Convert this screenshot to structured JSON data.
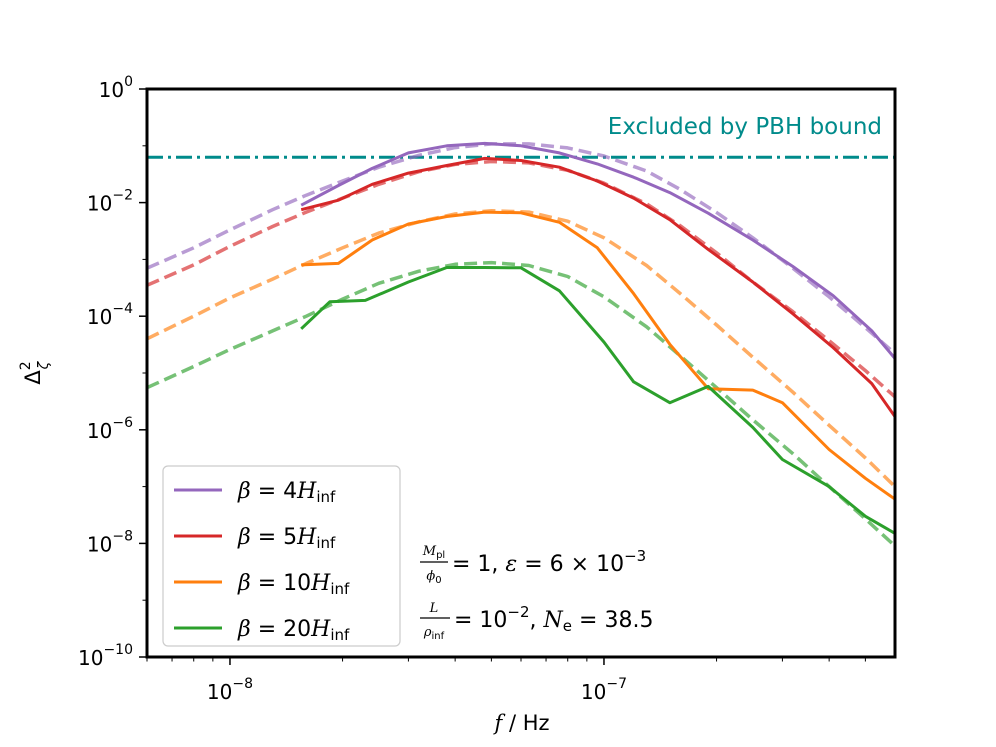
{
  "chart_data": {
    "type": "line",
    "title": "",
    "xlabel": "f / Hz",
    "ylabel": "Δζ²",
    "xscale": "log",
    "yscale": "log",
    "xlim": [
      6e-09,
      6e-07
    ],
    "ylim": [
      1e-10,
      1
    ],
    "x_ticks": [
      {
        "value": 1e-08,
        "base": "10",
        "exp": "−8"
      },
      {
        "value": 1e-07,
        "base": "10",
        "exp": "−7"
      }
    ],
    "y_ticks": [
      {
        "value": 1,
        "base": "10",
        "exp": "0"
      },
      {
        "value": 0.01,
        "base": "10",
        "exp": "−2"
      },
      {
        "value": 0.0001,
        "base": "10",
        "exp": "−4"
      },
      {
        "value": 1e-06,
        "base": "10",
        "exp": "−6"
      },
      {
        "value": 1e-08,
        "base": "10",
        "exp": "−8"
      },
      {
        "value": 1e-10,
        "base": "10",
        "exp": "−10"
      }
    ],
    "pbh_bound": {
      "value": 0.063,
      "label": "Excluded by PBH bound",
      "color": "#008b8b"
    },
    "legend": {
      "placement": "lower-left"
    },
    "series": [
      {
        "name": "β = 4H_inf",
        "symbol": "β",
        "rel": " = 4",
        "var": "H",
        "sub": "inf",
        "color": "#9467bd",
        "solid": {
          "x": [
            1.55e-08,
            1.95e-08,
            2.4e-08,
            3e-08,
            3.8e-08,
            4.8e-08,
            6e-08,
            7.6e-08,
            9.6e-08,
            1.2e-07,
            1.5e-07,
            1.9e-07,
            2.5e-07,
            3.2e-07,
            4.1e-07,
            5.2e-07,
            6e-07
          ],
          "y": [
            0.009,
            0.02,
            0.04,
            0.075,
            0.1,
            0.11,
            0.1,
            0.075,
            0.048,
            0.028,
            0.015,
            0.0065,
            0.0022,
            0.00075,
            0.00023,
            5.5e-05,
            1.8e-05
          ]
        },
        "dashed": {
          "x": [
            6e-09,
            8e-09,
            1e-08,
            1.3e-08,
            1.6e-08,
            2e-08,
            2.5e-08,
            3.2e-08,
            4e-08,
            5e-08,
            6.3e-08,
            8e-08,
            1e-07,
            1.3e-07,
            1.6e-07,
            2e-07,
            2.5e-07,
            3.2e-07,
            4e-07,
            5e-07,
            6e-07
          ],
          "y": [
            0.0007,
            0.0016,
            0.0033,
            0.0075,
            0.0135,
            0.024,
            0.042,
            0.068,
            0.093,
            0.108,
            0.108,
            0.092,
            0.066,
            0.036,
            0.017,
            0.0067,
            0.0024,
            0.0007,
            0.00022,
            6.3e-05,
            2.2e-05
          ]
        }
      },
      {
        "name": "β = 5H_inf",
        "symbol": "β",
        "rel": " = 5",
        "var": "H",
        "sub": "inf",
        "color": "#d62728",
        "solid": {
          "x": [
            1.55e-08,
            1.95e-08,
            2.4e-08,
            3e-08,
            3.8e-08,
            4.8e-08,
            6e-08,
            7.6e-08,
            9.6e-08,
            1.2e-07,
            1.5e-07,
            1.9e-07,
            2.5e-07,
            3.2e-07,
            4.1e-07,
            5.2e-07,
            6e-07
          ],
          "y": [
            0.0075,
            0.011,
            0.021,
            0.033,
            0.045,
            0.06,
            0.055,
            0.042,
            0.024,
            0.012,
            0.005,
            0.0015,
            0.0004,
            0.00011,
            2.8e-05,
            6.5e-06,
            1.7e-06
          ]
        },
        "dashed": {
          "x": [
            6e-09,
            8e-09,
            1e-08,
            1.3e-08,
            1.6e-08,
            2e-08,
            2.5e-08,
            3.2e-08,
            4e-08,
            5e-08,
            6.3e-08,
            8e-08,
            1e-07,
            1.3e-07,
            1.6e-07,
            2e-07,
            2.5e-07,
            3.2e-07,
            4e-07,
            5e-07,
            6e-07
          ],
          "y": [
            0.00035,
            0.0008,
            0.0017,
            0.0038,
            0.0068,
            0.012,
            0.021,
            0.035,
            0.047,
            0.053,
            0.05,
            0.037,
            0.022,
            0.0095,
            0.0039,
            0.0013,
            0.0004,
            0.00012,
            3.7e-05,
            1.1e-05,
            3.8e-06
          ]
        }
      },
      {
        "name": "β = 10H_inf",
        "symbol": "β",
        "rel": " = 10",
        "var": "H",
        "sub": "inf",
        "color": "#ff7f0e",
        "solid": {
          "x": [
            1.55e-08,
            1.95e-08,
            2.4e-08,
            3e-08,
            3.8e-08,
            4.8e-08,
            6e-08,
            7.6e-08,
            9.6e-08,
            1.2e-07,
            1.5e-07,
            1.9e-07,
            2.5e-07,
            3e-07,
            4e-07,
            5e-07,
            6e-07
          ],
          "y": [
            0.0008,
            0.00085,
            0.0022,
            0.0042,
            0.0057,
            0.0068,
            0.0066,
            0.0045,
            0.0016,
            0.00025,
            3.2e-05,
            5.3e-06,
            5e-06,
            3e-06,
            4.5e-07,
            1.4e-07,
            6e-08
          ]
        },
        "dashed": {
          "x": [
            6e-09,
            8e-09,
            1e-08,
            1.3e-08,
            1.6e-08,
            2e-08,
            2.5e-08,
            3.2e-08,
            4e-08,
            5e-08,
            6.3e-08,
            8e-08,
            1e-07,
            1.3e-07,
            1.6e-07,
            2e-07,
            2.5e-07,
            3.2e-07,
            4e-07,
            5e-07,
            6e-07
          ],
          "y": [
            4e-05,
            0.0001,
            0.00021,
            0.00045,
            0.00085,
            0.0016,
            0.0029,
            0.0046,
            0.0063,
            0.0072,
            0.0068,
            0.0047,
            0.0024,
            0.00078,
            0.00025,
            7e-05,
            1.9e-05,
            4.6e-06,
            1.2e-06,
            3.2e-07,
            1e-07
          ]
        }
      },
      {
        "name": "β = 20H_inf",
        "symbol": "β",
        "rel": " = 20",
        "var": "H",
        "sub": "inf",
        "color": "#2ca02c",
        "solid": {
          "x": [
            1.55e-08,
            1.85e-08,
            2.3e-08,
            3e-08,
            3.8e-08,
            4.8e-08,
            6e-08,
            7.6e-08,
            1e-07,
            1.2e-07,
            1.5e-07,
            1.9e-07,
            2.5e-07,
            3e-07,
            4e-07,
            5e-07,
            6e-07
          ],
          "y": [
            6e-05,
            0.00018,
            0.00019,
            0.0004,
            0.00072,
            0.00072,
            0.00071,
            0.00028,
            3.5e-05,
            7e-06,
            3e-06,
            5.8e-06,
            1.1e-06,
            3e-07,
            1e-07,
            3e-08,
            1.5e-08
          ]
        },
        "dashed": {
          "x": [
            6e-09,
            8e-09,
            1e-08,
            1.3e-08,
            1.6e-08,
            2e-08,
            2.5e-08,
            3.2e-08,
            4e-08,
            5e-08,
            6.3e-08,
            8e-08,
            1e-07,
            1.3e-07,
            1.6e-07,
            2e-07,
            2.5e-07,
            3.2e-07,
            4e-07,
            5e-07,
            6e-07
          ],
          "y": [
            5.5e-06,
            1.3e-05,
            2.6e-05,
            5.5e-05,
            0.0001,
            0.0002,
            0.00038,
            0.00062,
            0.00082,
            0.00088,
            0.00078,
            0.0005,
            0.00022,
            6.5e-05,
            2e-05,
            5.5e-06,
            1.5e-06,
            3.8e-07,
            1e-07,
            2.7e-08,
            9e-09
          ]
        }
      }
    ],
    "annotations": {
      "line1": {
        "frac_num": "M",
        "frac_num_sub": "pl",
        "frac_den": "ϕ",
        "frac_den_sub": "0",
        "text_a": " = 1, ",
        "eps": "ε",
        "text_b": " = 6 × 10",
        "exp": "−3"
      },
      "line2": {
        "frac_num": "L",
        "frac_den": "ρ",
        "frac_den_sub": "inf",
        "text_a": " = 10",
        "exp": "−2",
        "text_b": ", ",
        "ne": "N",
        "ne_sub": "e",
        "text_c": " = 38.5"
      }
    }
  }
}
